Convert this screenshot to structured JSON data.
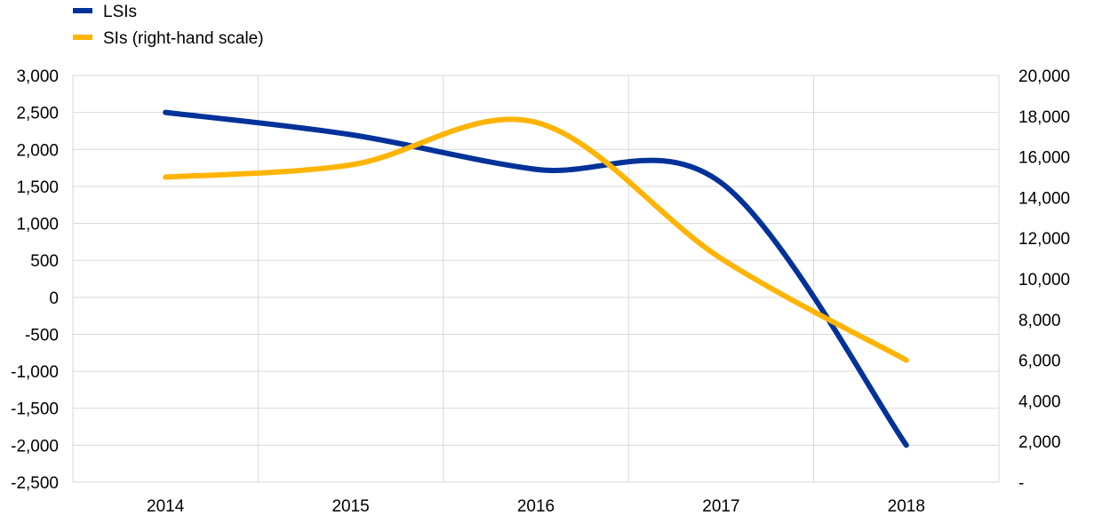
{
  "chart_data": {
    "type": "line",
    "title": "",
    "xlabel": "",
    "ylabel": "",
    "categories": [
      "2014",
      "2015",
      "2016",
      "2017",
      "2018"
    ],
    "y_left": {
      "min": -2500,
      "max": 3000,
      "step": 500,
      "tick_labels": [
        "-2,500",
        "-2,000",
        "-1,500",
        "-1,000",
        "-500",
        "0",
        "500",
        "1,000",
        "1,500",
        "2,000",
        "2,500",
        "3,000"
      ]
    },
    "y_right": {
      "min": 0,
      "max": 20000,
      "step": 2000,
      "tick_labels": [
        "-",
        "2,000",
        "4,000",
        "6,000",
        "8,000",
        "10,000",
        "12,000",
        "14,000",
        "16,000",
        "18,000",
        "20,000"
      ]
    },
    "series": [
      {
        "name": "LSIs",
        "axis": "left",
        "color": "#003299",
        "values": [
          2500,
          2200,
          1730,
          1550,
          -2000
        ]
      },
      {
        "name": "SIs (right-hand scale)",
        "axis": "right",
        "color": "#FFB400",
        "values": [
          15000,
          15600,
          17700,
          11000,
          6000
        ]
      }
    ],
    "grid": true,
    "legend_position": "top-left"
  }
}
